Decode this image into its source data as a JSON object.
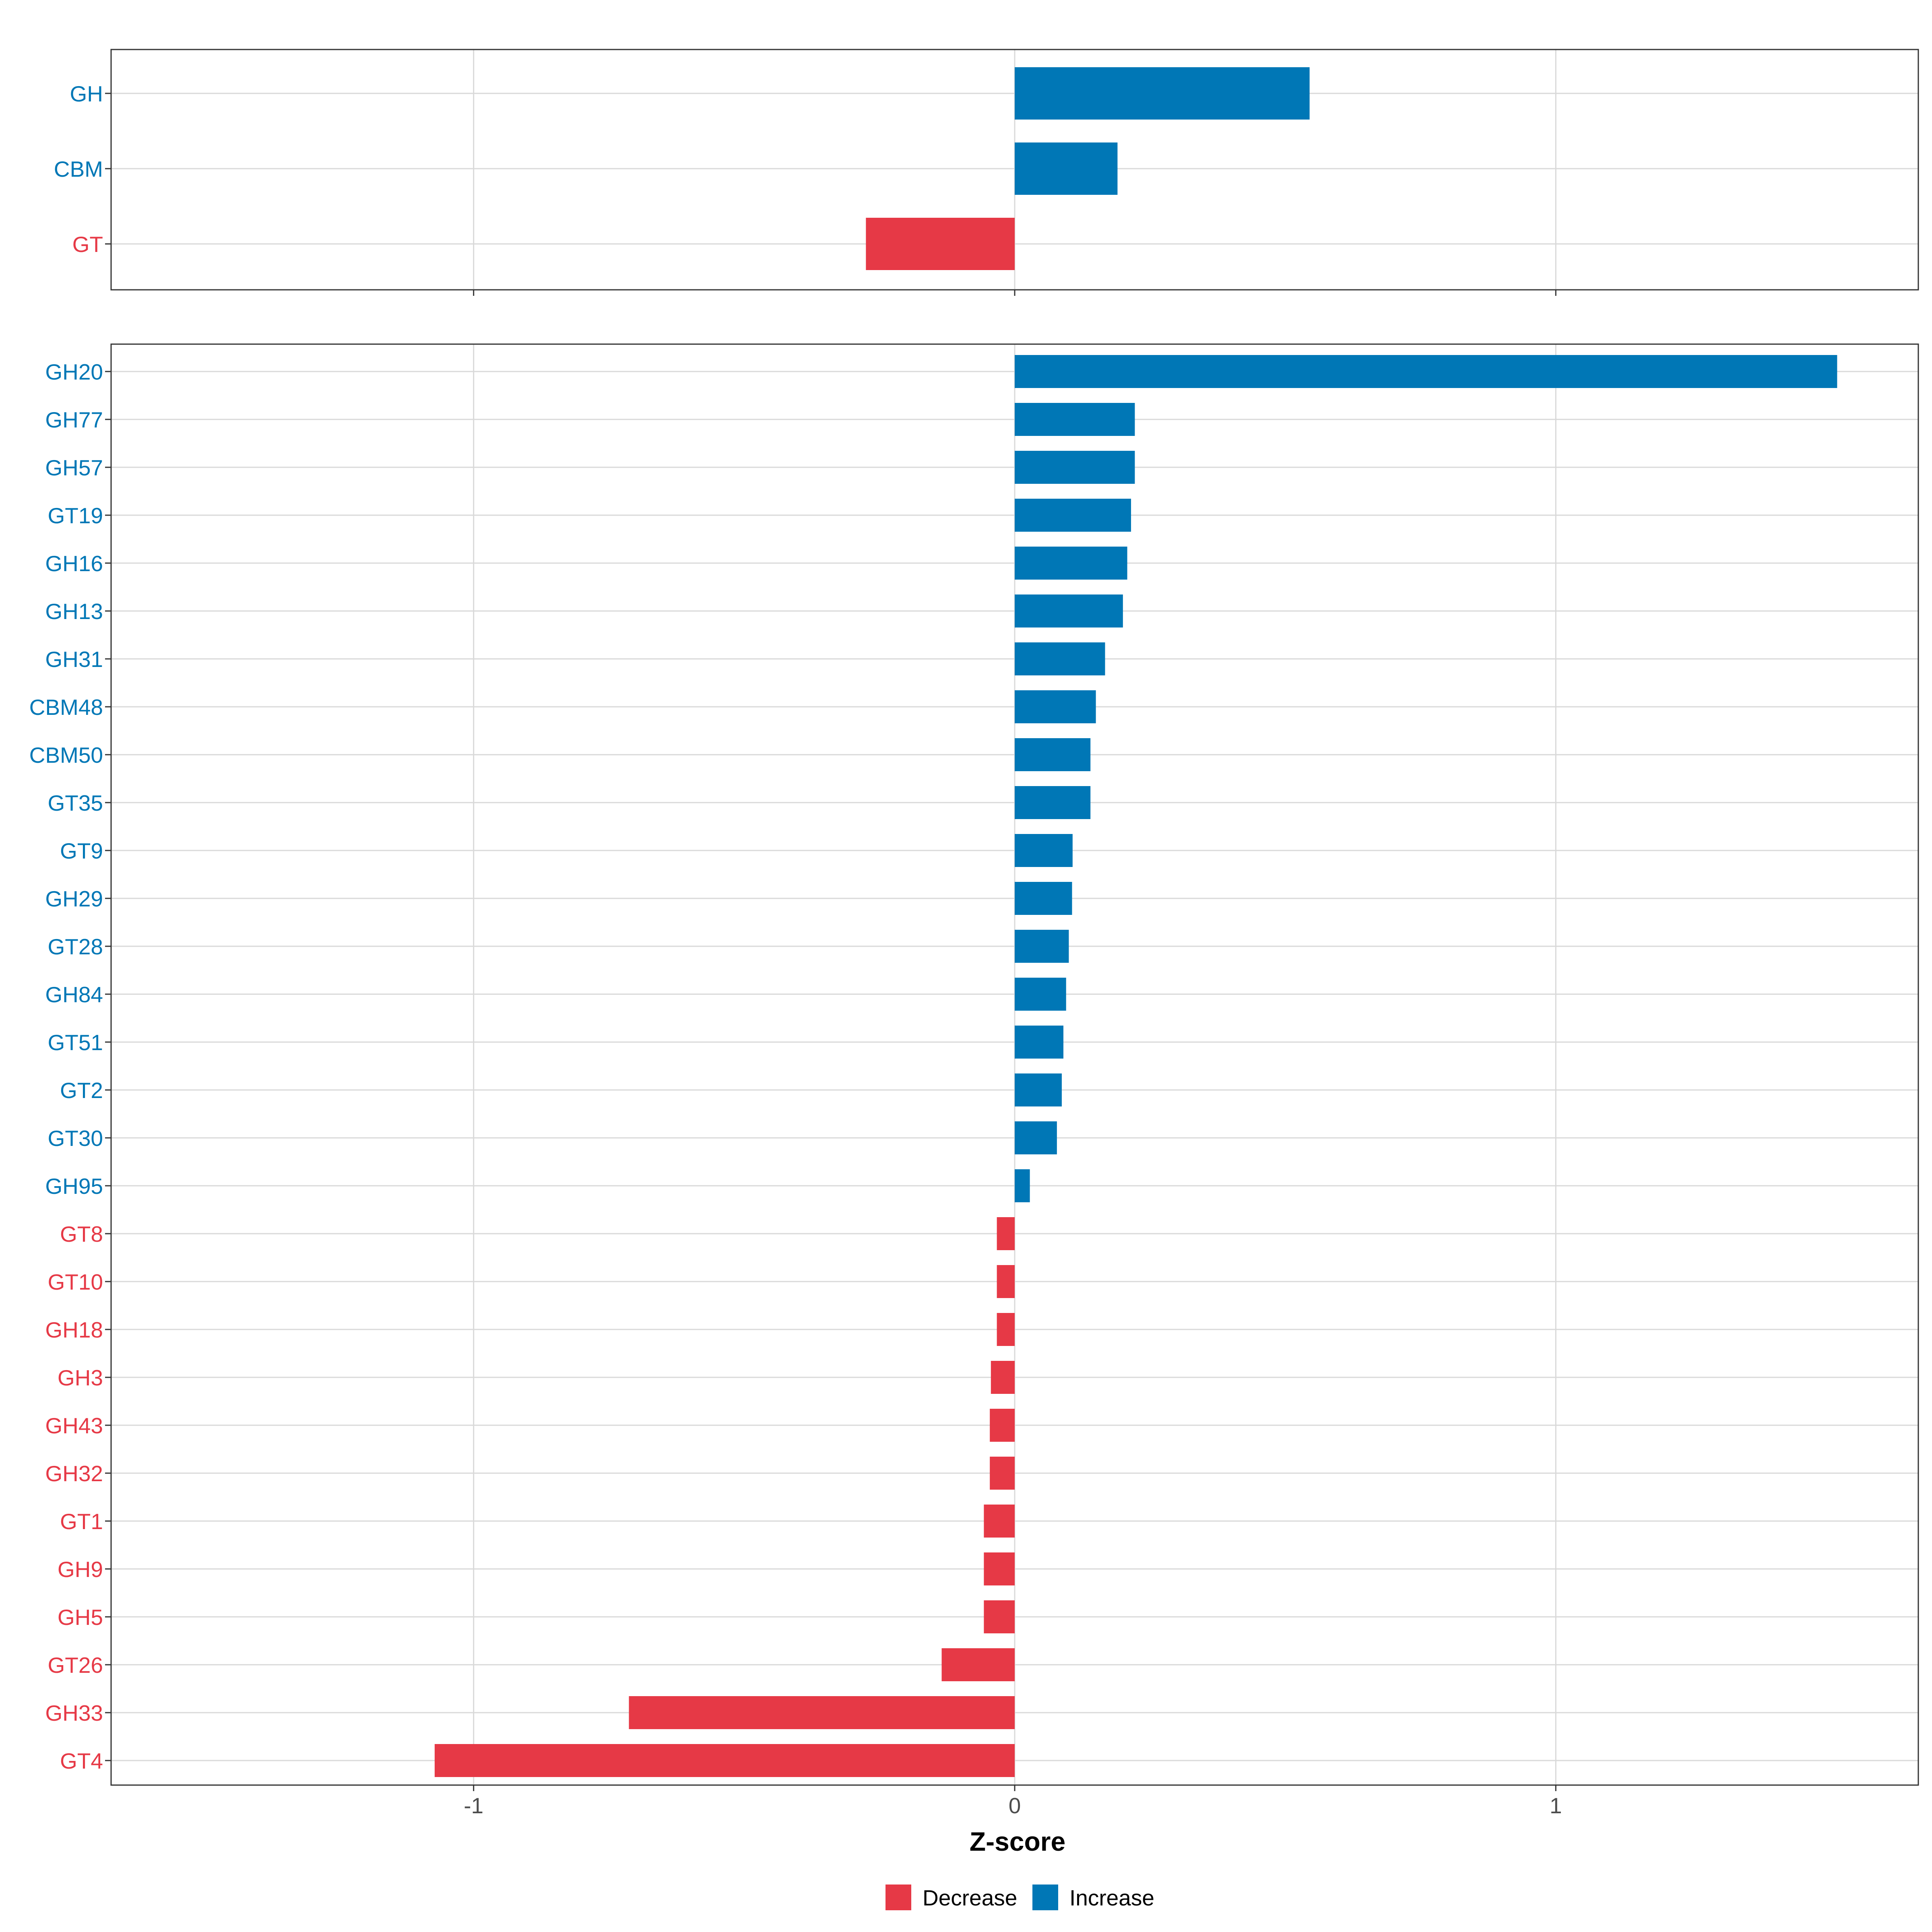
{
  "colors": {
    "decrease": "#E63946",
    "increase": "#0077B6",
    "grid": "#D9D9D9",
    "panel_border": "#333333"
  },
  "chart_data": [
    {
      "type": "bar",
      "orientation": "horizontal",
      "panel": "top",
      "categories": [
        "GH",
        "CBM",
        "GT"
      ],
      "values": [
        0.545,
        0.19,
        -0.275
      ],
      "direction": [
        "Increase",
        "Increase",
        "Decrease"
      ],
      "xlim": [
        -1.67,
        1.67
      ],
      "xticks": [
        -1,
        0,
        1
      ],
      "grid": true
    },
    {
      "type": "bar",
      "orientation": "horizontal",
      "panel": "bottom",
      "categories": [
        "GH20",
        "GH77",
        "GH57",
        "GT19",
        "GH16",
        "GH13",
        "GH31",
        "CBM48",
        "CBM50",
        "GT35",
        "GT9",
        "GH29",
        "GT28",
        "GH84",
        "GT51",
        "GT2",
        "GT30",
        "GH95",
        "GT8",
        "GT10",
        "GH18",
        "GH3",
        "GH43",
        "GH32",
        "GT1",
        "GH9",
        "GH5",
        "GT26",
        "GH33",
        "GT4"
      ],
      "values": [
        1.52,
        0.222,
        0.222,
        0.215,
        0.208,
        0.2,
        0.167,
        0.15,
        0.14,
        0.14,
        0.107,
        0.106,
        0.1,
        0.095,
        0.09,
        0.087,
        0.078,
        0.028,
        -0.033,
        -0.033,
        -0.033,
        -0.044,
        -0.046,
        -0.046,
        -0.057,
        -0.057,
        -0.057,
        -0.135,
        -0.713,
        -1.072
      ],
      "direction": [
        "Increase",
        "Increase",
        "Increase",
        "Increase",
        "Increase",
        "Increase",
        "Increase",
        "Increase",
        "Increase",
        "Increase",
        "Increase",
        "Increase",
        "Increase",
        "Increase",
        "Increase",
        "Increase",
        "Increase",
        "Increase",
        "Decrease",
        "Decrease",
        "Decrease",
        "Decrease",
        "Decrease",
        "Decrease",
        "Decrease",
        "Decrease",
        "Decrease",
        "Decrease",
        "Decrease",
        "Decrease"
      ],
      "xlim": [
        -1.67,
        1.67
      ],
      "xticks": [
        -1,
        0,
        1
      ],
      "xtick_labels": [
        "-1",
        "0",
        "1"
      ],
      "xlabel": "Z-score",
      "grid": true
    }
  ],
  "legend": {
    "position": "bottom",
    "items": [
      {
        "label": "Decrease",
        "key": "decrease"
      },
      {
        "label": "Increase",
        "key": "increase"
      }
    ]
  }
}
